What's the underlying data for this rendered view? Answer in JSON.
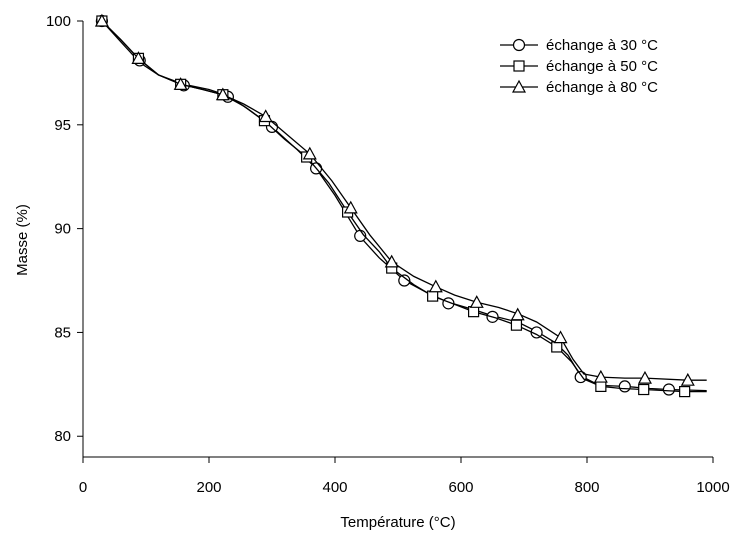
{
  "chart_data": {
    "type": "line",
    "title": "",
    "xlabel": "Température (°C)",
    "ylabel": "Masse (%)",
    "xlim": [
      0,
      1000
    ],
    "ylim": [
      79,
      100
    ],
    "xticks": [
      0,
      200,
      400,
      600,
      800,
      1000
    ],
    "yticks": [
      80,
      85,
      90,
      95,
      100
    ],
    "grid": false,
    "legend_position": "top-right",
    "series": [
      {
        "name": "échange à 30 °C",
        "marker": "circle",
        "curve": [
          [
            30,
            100.0
          ],
          [
            60,
            99.0
          ],
          [
            90,
            98.0
          ],
          [
            120,
            97.4
          ],
          [
            160,
            96.95
          ],
          [
            200,
            96.7
          ],
          [
            230,
            96.4
          ],
          [
            260,
            95.8
          ],
          [
            300,
            94.9
          ],
          [
            340,
            93.8
          ],
          [
            370,
            92.9
          ],
          [
            400,
            91.6
          ],
          [
            420,
            90.6
          ],
          [
            440,
            89.6
          ],
          [
            470,
            88.6
          ],
          [
            510,
            87.5
          ],
          [
            550,
            86.85
          ],
          [
            580,
            86.45
          ],
          [
            620,
            86.1
          ],
          [
            650,
            85.8
          ],
          [
            690,
            85.5
          ],
          [
            720,
            85.05
          ],
          [
            750,
            84.5
          ],
          [
            770,
            83.9
          ],
          [
            790,
            82.9
          ],
          [
            820,
            82.45
          ],
          [
            860,
            82.4
          ],
          [
            900,
            82.3
          ],
          [
            930,
            82.25
          ],
          [
            990,
            82.2
          ]
        ],
        "markers": [
          [
            30,
            100.0
          ],
          [
            90,
            98.1
          ],
          [
            160,
            96.9
          ],
          [
            230,
            96.35
          ],
          [
            300,
            94.9
          ],
          [
            370,
            92.9
          ],
          [
            440,
            89.65
          ],
          [
            510,
            87.5
          ],
          [
            580,
            86.4
          ],
          [
            650,
            85.75
          ],
          [
            720,
            85.0
          ],
          [
            790,
            82.85
          ],
          [
            860,
            82.4
          ],
          [
            930,
            82.25
          ]
        ]
      },
      {
        "name": "échange à 50 °C",
        "marker": "square",
        "curve": [
          [
            30,
            100.0
          ],
          [
            60,
            99.1
          ],
          [
            88,
            98.2
          ],
          [
            120,
            97.4
          ],
          [
            155,
            96.95
          ],
          [
            190,
            96.7
          ],
          [
            222,
            96.45
          ],
          [
            255,
            95.9
          ],
          [
            288,
            95.2
          ],
          [
            320,
            94.3
          ],
          [
            355,
            93.45
          ],
          [
            390,
            92.2
          ],
          [
            420,
            90.8
          ],
          [
            445,
            89.7
          ],
          [
            470,
            88.9
          ],
          [
            490,
            88.1
          ],
          [
            525,
            87.3
          ],
          [
            555,
            86.75
          ],
          [
            590,
            86.35
          ],
          [
            620,
            86.0
          ],
          [
            655,
            85.7
          ],
          [
            688,
            85.35
          ],
          [
            720,
            84.9
          ],
          [
            752,
            84.3
          ],
          [
            775,
            83.6
          ],
          [
            795,
            82.75
          ],
          [
            822,
            82.4
          ],
          [
            855,
            82.3
          ],
          [
            890,
            82.25
          ],
          [
            955,
            82.15
          ],
          [
            990,
            82.15
          ]
        ],
        "markers": [
          [
            30,
            100.0
          ],
          [
            88,
            98.2
          ],
          [
            155,
            96.95
          ],
          [
            222,
            96.45
          ],
          [
            288,
            95.2
          ],
          [
            355,
            93.45
          ],
          [
            420,
            90.8
          ],
          [
            490,
            88.1
          ],
          [
            555,
            86.75
          ],
          [
            620,
            86.0
          ],
          [
            688,
            85.35
          ],
          [
            752,
            84.3
          ],
          [
            822,
            82.4
          ],
          [
            890,
            82.25
          ],
          [
            955,
            82.15
          ]
        ]
      },
      {
        "name": "échange à 80 °C",
        "marker": "triangle",
        "curve": [
          [
            30,
            100.0
          ],
          [
            60,
            99.1
          ],
          [
            88,
            98.2
          ],
          [
            120,
            97.4
          ],
          [
            155,
            96.95
          ],
          [
            190,
            96.7
          ],
          [
            222,
            96.45
          ],
          [
            255,
            96.0
          ],
          [
            290,
            95.4
          ],
          [
            325,
            94.5
          ],
          [
            360,
            93.6
          ],
          [
            395,
            92.3
          ],
          [
            425,
            91.0
          ],
          [
            455,
            89.7
          ],
          [
            490,
            88.4
          ],
          [
            525,
            87.7
          ],
          [
            560,
            87.2
          ],
          [
            590,
            86.8
          ],
          [
            625,
            86.45
          ],
          [
            660,
            86.2
          ],
          [
            690,
            85.9
          ],
          [
            720,
            85.5
          ],
          [
            758,
            84.75
          ],
          [
            778,
            83.7
          ],
          [
            795,
            83.0
          ],
          [
            822,
            82.85
          ],
          [
            860,
            82.8
          ],
          [
            892,
            82.8
          ],
          [
            960,
            82.7
          ],
          [
            990,
            82.7
          ]
        ],
        "markers": [
          [
            30,
            100.0
          ],
          [
            88,
            98.2
          ],
          [
            155,
            96.95
          ],
          [
            222,
            96.45
          ],
          [
            290,
            95.4
          ],
          [
            360,
            93.6
          ],
          [
            425,
            91.0
          ],
          [
            490,
            88.4
          ],
          [
            560,
            87.2
          ],
          [
            625,
            86.45
          ],
          [
            690,
            85.85
          ],
          [
            758,
            84.75
          ],
          [
            822,
            82.85
          ],
          [
            892,
            82.8
          ],
          [
            960,
            82.7
          ]
        ]
      }
    ]
  }
}
